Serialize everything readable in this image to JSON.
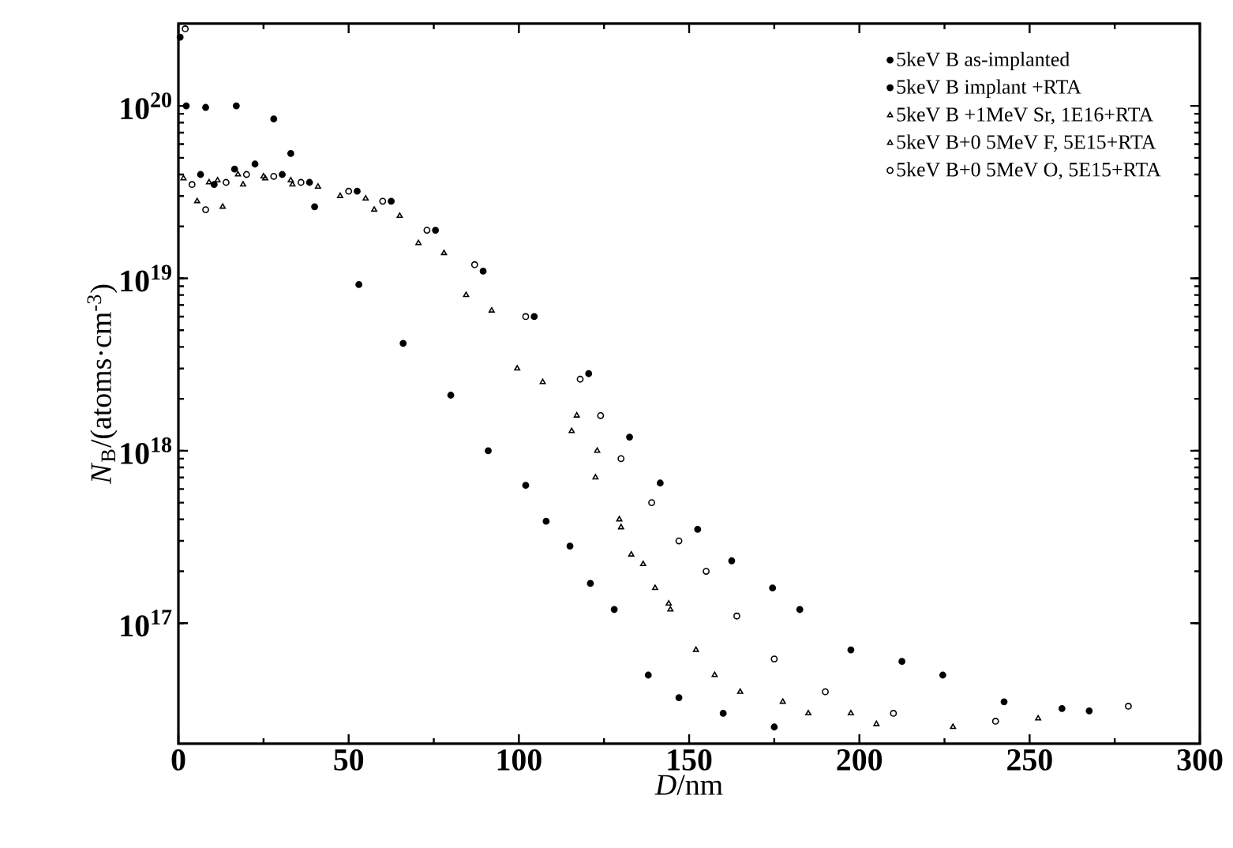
{
  "chart_data": {
    "type": "scatter",
    "xlabel": "*D*/nm",
    "ylabel": "*N*$_{B}$/(atoms·cm$^{-3}$)",
    "log": "y",
    "xlim": [
      0,
      300
    ],
    "xticks": [
      0,
      50,
      100,
      150,
      200,
      250,
      300
    ],
    "ylim": [
      2e+16,
      3e+20
    ],
    "yticks": [
      {
        "value": 1e+17,
        "label": "10$^{17}$"
      },
      {
        "value": 1e+18,
        "label": "10$^{18}$"
      },
      {
        "value": 1e+19,
        "label": "10$^{19}$"
      },
      {
        "value": 1e+20,
        "label": "10$^{20}$"
      }
    ],
    "legend": "top right",
    "grid": false,
    "series": [
      {
        "name": "5keV B as-implanted",
        "color": "#000000",
        "marker": "circle",
        "x": [
          0.5,
          2.3,
          8,
          17,
          28,
          33,
          40,
          53,
          66,
          80,
          91,
          102,
          108,
          115,
          121,
          128,
          138,
          147,
          160,
          175
        ],
        "values": [
          2.5e+20,
          1e+20,
          9.8e+19,
          1e+20,
          8.4e+19,
          5.3e+19,
          2.6e+19,
          9.2e+18,
          4.2e+18,
          2.1e+18,
          1e+18,
          6.3e+17,
          3.9e+17,
          2.8e+17,
          1.7e+17,
          1.2e+17,
          5e+16,
          3.7e+16,
          3e+16,
          2.5e+16
        ]
      },
      {
        "name": "5keV B implant +RTA",
        "color": "#000000",
        "marker": "circle",
        "x": [
          6.5,
          10.5,
          16.5,
          22.5,
          30.5,
          38.5,
          52.5,
          62.5,
          75.5,
          89.5,
          104.5,
          120.5,
          132.5,
          141.5,
          152.5,
          162.5,
          174.5,
          182.5,
          197.5,
          212.5,
          224.5,
          242.5,
          259.5,
          267.5
        ],
        "values": [
          4e+19,
          3.5e+19,
          4.3e+19,
          4.6e+19,
          4e+19,
          3.6e+19,
          3.2e+19,
          2.8e+19,
          1.9e+19,
          1.1e+19,
          6e+18,
          2.8e+18,
          1.2e+18,
          6.5e+17,
          3.5e+17,
          2.3e+17,
          1.6e+17,
          1.2e+17,
          7e+16,
          6e+16,
          5e+16,
          3.5e+16,
          3.2e+16,
          3.1e+16
        ]
      },
      {
        "name": "5keV B +1MeV Sr, 1E16+RTA",
        "color": "#000000",
        "marker": "triangle",
        "x": [
          1.5,
          5.5,
          11.5,
          17.5,
          25.5,
          33.5,
          47.5,
          57.5,
          70.5,
          84.5,
          99.5,
          115.5,
          122.5,
          129.5,
          136.5,
          144.5,
          157.5,
          177.5,
          197.5,
          227.5,
          252.5
        ],
        "values": [
          3.8e+19,
          2.8e+19,
          3.7e+19,
          4e+19,
          3.8e+19,
          3.5e+19,
          3e+19,
          2.5e+19,
          1.6e+19,
          8e+18,
          3e+18,
          1.3e+18,
          7e+17,
          4e+17,
          2.2e+17,
          1.2e+17,
          5e+16,
          3.5e+16,
          3e+16,
          2.5e+16,
          2.8e+16
        ]
      },
      {
        "name": "5keV B+0 5MeV F, 5E15+RTA",
        "color": "#000000",
        "marker": "triangle",
        "x": [
          9,
          13,
          19,
          25,
          33,
          41,
          55,
          65,
          78,
          92,
          107,
          117,
          123,
          130,
          133,
          140,
          144,
          152,
          165,
          185,
          205
        ],
        "values": [
          3.6e+19,
          2.6e+19,
          3.5e+19,
          3.9e+19,
          3.7e+19,
          3.4e+19,
          2.9e+19,
          2.3e+19,
          1.4e+19,
          6.5e+18,
          2.5e+18,
          1.6e+18,
          1e+18,
          3.6e+17,
          2.5e+17,
          1.6e+17,
          1.3e+17,
          7e+16,
          4e+16,
          3e+16,
          2.6e+16
        ]
      },
      {
        "name": "5keV B+0 5MeV O, 5E15+RTA",
        "color": "#000000",
        "marker": "circle",
        "x": [
          2,
          4,
          8,
          14,
          20,
          28,
          36,
          50,
          60,
          73,
          87,
          102,
          118,
          124,
          130,
          139,
          147,
          155,
          164,
          175,
          190,
          210,
          240,
          279
        ],
        "values": [
          2.8e+20,
          3.5e+19,
          2.5e+19,
          3.6e+19,
          4e+19,
          3.9e+19,
          3.6e+19,
          3.2e+19,
          2.8e+19,
          1.9e+19,
          1.2e+19,
          6e+18,
          2.6e+18,
          1.6e+18,
          9e+17,
          5e+17,
          3e+17,
          2e+17,
          1.1e+17,
          6.2e+16,
          4e+16,
          3e+16,
          2.7e+16,
          3.3e+16
        ]
      }
    ]
  }
}
